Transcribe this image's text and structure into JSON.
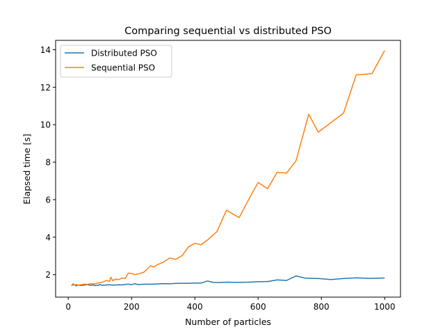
{
  "chart_data": {
    "type": "line",
    "title": "Comparing sequential vs distributed PSO",
    "xlabel": "Number of particles",
    "ylabel": "Elapsed time [s]",
    "xlim": [
      -40,
      1050
    ],
    "ylim": [
      0.8,
      14.5
    ],
    "xticks": [
      0,
      200,
      400,
      600,
      800,
      1000
    ],
    "yticks": [
      2,
      4,
      6,
      8,
      10,
      12,
      14
    ],
    "grid": false,
    "legend_position": "top-left",
    "series": [
      {
        "name": "Distributed PSO",
        "color": "#1f77b4",
        "x": [
          10,
          15,
          20,
          25,
          30,
          40,
          50,
          60,
          70,
          80,
          85,
          90,
          95,
          100,
          105,
          110,
          120,
          130,
          140,
          150,
          160,
          170,
          180,
          190,
          200,
          210,
          220,
          240,
          260,
          280,
          300,
          320,
          340,
          360,
          380,
          400,
          420,
          440,
          460,
          480,
          500,
          520,
          540,
          570,
          600,
          630,
          660,
          690,
          720,
          750,
          790,
          830,
          870,
          910,
          950,
          1000
        ],
        "values": [
          1.42,
          1.46,
          1.45,
          1.4,
          1.44,
          1.42,
          1.44,
          1.47,
          1.43,
          1.45,
          1.41,
          1.44,
          1.42,
          1.48,
          1.44,
          1.43,
          1.45,
          1.46,
          1.44,
          1.45,
          1.46,
          1.45,
          1.48,
          1.49,
          1.46,
          1.52,
          1.47,
          1.49,
          1.49,
          1.5,
          1.52,
          1.51,
          1.53,
          1.54,
          1.54,
          1.55,
          1.55,
          1.66,
          1.58,
          1.58,
          1.6,
          1.59,
          1.59,
          1.6,
          1.62,
          1.63,
          1.72,
          1.69,
          1.93,
          1.81,
          1.79,
          1.74,
          1.79,
          1.83,
          1.8,
          1.82
        ]
      },
      {
        "name": "Sequential PSO",
        "color": "#ff7f0e",
        "x": [
          10,
          15,
          20,
          25,
          30,
          40,
          50,
          60,
          70,
          80,
          90,
          100,
          110,
          120,
          130,
          135,
          140,
          150,
          160,
          170,
          180,
          190,
          200,
          210,
          220,
          240,
          260,
          270,
          280,
          300,
          320,
          340,
          360,
          380,
          400,
          420,
          440,
          470,
          500,
          540,
          570,
          600,
          630,
          660,
          690,
          720,
          760,
          790,
          870,
          910,
          960,
          1000
        ],
        "values": [
          1.4,
          1.52,
          1.43,
          1.48,
          1.44,
          1.46,
          1.49,
          1.48,
          1.52,
          1.5,
          1.54,
          1.57,
          1.61,
          1.69,
          1.63,
          1.86,
          1.68,
          1.76,
          1.74,
          1.82,
          1.8,
          2.08,
          2.06,
          2.0,
          2.03,
          2.14,
          2.47,
          2.4,
          2.52,
          2.66,
          2.88,
          2.82,
          3.02,
          3.48,
          3.67,
          3.6,
          3.85,
          4.3,
          5.44,
          5.04,
          6.0,
          6.92,
          6.58,
          7.46,
          7.42,
          8.08,
          10.56,
          9.6,
          10.62,
          12.66,
          12.72,
          13.96
        ]
      }
    ]
  }
}
